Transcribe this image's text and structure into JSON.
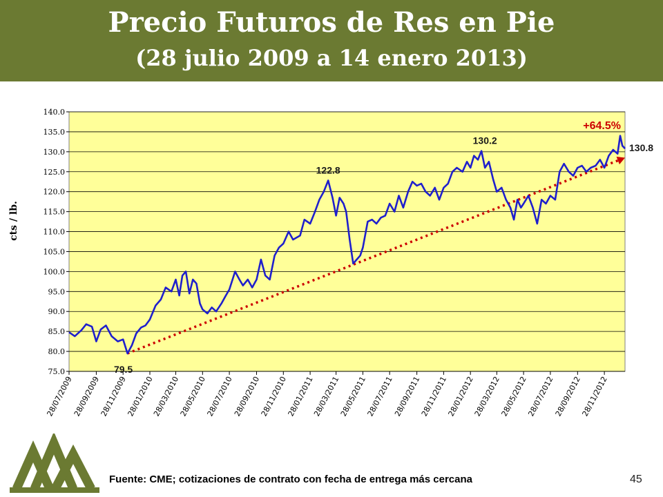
{
  "slide": {
    "title": "Precio Futuros de Res en Pie",
    "subtitle": "(28 julio 2009 a 14 enero 2013)",
    "source": "Fuente: CME; cotizaciones de contrato con fecha de entrega más cercana",
    "page_number": "45",
    "colors": {
      "title_band": "#6b7a32",
      "logo": "#6b7a32"
    },
    "logo_icon": "mountain-peaks-logo-icon"
  },
  "chart_data": {
    "type": "line",
    "ylabel": "cts / lb.",
    "xlabel": "",
    "ylim": [
      75.0,
      140.0
    ],
    "y_ticks": [
      "75.0",
      "80.0",
      "85.0",
      "90.0",
      "95.0",
      "100.0",
      "105.0",
      "110.0",
      "115.0",
      "120.0",
      "125.0",
      "130.0",
      "135.0",
      "140.0"
    ],
    "x_tick_labels": [
      "28/07/2009",
      "28/09/2009",
      "28/11/2009",
      "28/01/2010",
      "28/03/2010",
      "28/05/2010",
      "28/07/2010",
      "28/09/2010",
      "28/11/2010",
      "28/01/2011",
      "28/03/2011",
      "28/05/2011",
      "28/07/2011",
      "28/09/2011",
      "28/11/2011",
      "28/01/2012",
      "28/03/2012",
      "28/05/2012",
      "28/07/2012",
      "28/09/2012",
      "28/11/2012"
    ],
    "x_range": [
      "2009-07-28",
      "2013-01-14"
    ],
    "colors": {
      "plot_bg": "#ffff99",
      "series": "#1f1fcc",
      "trend": "#cc0000"
    },
    "series": [
      {
        "x": [
          "2009-07-28",
          "2009-08-10",
          "2009-08-25",
          "2009-09-05",
          "2009-09-18",
          "2009-09-28",
          "2009-10-08",
          "2009-10-20",
          "2009-11-02",
          "2009-11-16",
          "2009-11-28",
          "2009-12-08",
          "2009-12-18",
          "2009-12-28",
          "2010-01-08",
          "2010-01-18",
          "2010-01-28",
          "2010-02-10",
          "2010-02-22",
          "2010-03-05",
          "2010-03-18",
          "2010-03-28",
          "2010-04-05",
          "2010-04-12",
          "2010-04-20",
          "2010-04-28",
          "2010-05-06",
          "2010-05-14",
          "2010-05-22",
          "2010-05-28",
          "2010-06-08",
          "2010-06-18",
          "2010-06-28",
          "2010-07-10",
          "2010-07-20",
          "2010-07-28",
          "2010-08-10",
          "2010-08-20",
          "2010-08-28",
          "2010-09-08",
          "2010-09-18",
          "2010-09-28",
          "2010-10-08",
          "2010-10-18",
          "2010-10-28",
          "2010-11-08",
          "2010-11-18",
          "2010-11-28",
          "2010-12-10",
          "2010-12-20",
          "2011-01-05",
          "2011-01-15",
          "2011-01-28",
          "2011-02-08",
          "2011-02-18",
          "2011-02-28",
          "2011-03-10",
          "2011-03-20",
          "2011-03-28",
          "2011-04-05",
          "2011-04-14",
          "2011-04-20",
          "2011-04-28",
          "2011-05-06",
          "2011-05-14",
          "2011-05-22",
          "2011-05-28",
          "2011-06-08",
          "2011-06-18",
          "2011-06-28",
          "2011-07-08",
          "2011-07-18",
          "2011-07-28",
          "2011-08-08",
          "2011-08-18",
          "2011-08-28",
          "2011-09-08",
          "2011-09-18",
          "2011-09-28",
          "2011-10-08",
          "2011-10-18",
          "2011-10-28",
          "2011-11-08",
          "2011-11-18",
          "2011-11-28",
          "2011-12-08",
          "2011-12-18",
          "2011-12-28",
          "2012-01-10",
          "2012-01-20",
          "2012-01-28",
          "2012-02-05",
          "2012-02-14",
          "2012-02-22",
          "2012-03-01",
          "2012-03-10",
          "2012-03-20",
          "2012-03-28",
          "2012-04-08",
          "2012-04-18",
          "2012-04-28",
          "2012-05-06",
          "2012-05-14",
          "2012-05-22",
          "2012-05-28",
          "2012-06-08",
          "2012-06-18",
          "2012-06-28",
          "2012-07-08",
          "2012-07-18",
          "2012-07-28",
          "2012-08-08",
          "2012-08-18",
          "2012-08-28",
          "2012-09-08",
          "2012-09-18",
          "2012-09-28",
          "2012-10-08",
          "2012-10-18",
          "2012-10-28",
          "2012-11-08",
          "2012-11-18",
          "2012-11-28",
          "2012-12-08",
          "2012-12-18",
          "2012-12-28",
          "2013-01-03",
          "2013-01-08",
          "2013-01-14"
        ],
        "values": [
          84.8,
          83.8,
          85.3,
          86.8,
          86.2,
          82.5,
          85.5,
          86.5,
          83.8,
          82.5,
          83.0,
          79.5,
          81.5,
          84.5,
          86.0,
          86.5,
          88.0,
          91.5,
          93.0,
          96.0,
          95.0,
          98.0,
          94.0,
          99.0,
          100.0,
          94.5,
          98.0,
          97.0,
          92.0,
          90.5,
          89.5,
          91.0,
          90.0,
          92.0,
          94.0,
          95.5,
          100.0,
          98.0,
          96.5,
          98.0,
          96.0,
          98.0,
          103.0,
          99.0,
          98.0,
          104.0,
          106.0,
          107.0,
          110.0,
          108.0,
          109.0,
          113.0,
          112.0,
          115.0,
          118.0,
          120.0,
          122.8,
          118.5,
          114.0,
          118.5,
          117.0,
          115.0,
          108.0,
          102.0,
          103.0,
          104.0,
          106.0,
          112.5,
          113.0,
          112.0,
          113.5,
          114.0,
          117.0,
          115.0,
          119.0,
          116.0,
          120.0,
          122.5,
          121.5,
          122.0,
          120.0,
          119.0,
          121.0,
          118.0,
          121.0,
          122.0,
          125.0,
          126.0,
          125.0,
          127.5,
          126.0,
          129.0,
          128.0,
          130.2,
          126.0,
          127.5,
          123.0,
          120.0,
          121.0,
          118.0,
          116.0,
          113.0,
          118.0,
          116.0,
          117.0,
          119.0,
          116.0,
          112.0,
          118.0,
          117.0,
          119.0,
          118.0,
          125.0,
          127.0,
          125.0,
          124.0,
          126.0,
          126.5,
          125.0,
          126.0,
          126.5,
          128.0,
          126.0,
          129.0,
          130.5,
          129.5,
          134.0,
          131.5,
          130.8
        ]
      }
    ],
    "annotations": [
      {
        "text": "79.5",
        "x": "2009-12-08",
        "y": 79.5
      },
      {
        "text": "122.8",
        "x": "2011-03-10",
        "y": 122.8
      },
      {
        "text": "130.2",
        "x": "2012-03-01",
        "y": 130.2
      },
      {
        "text": "130.8",
        "x": "2013-01-14",
        "y": 130.8
      },
      {
        "text": "+64.5%",
        "kind": "trend-label"
      }
    ],
    "trend_line": {
      "x": [
        "2009-12-08",
        "2013-01-14"
      ],
      "y": [
        79.5,
        128.5
      ],
      "arrow": true
    }
  }
}
